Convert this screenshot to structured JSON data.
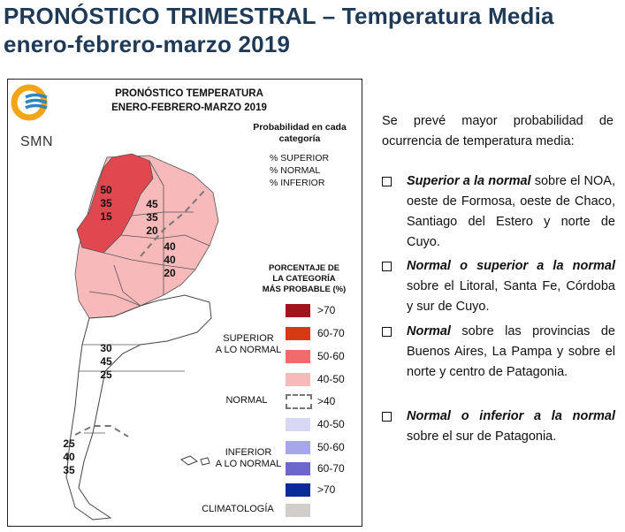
{
  "title_line1": "PRONÓSTICO TRIMESTRAL – Temperatura Media",
  "title_line2": "enero-febrero-marzo 2019",
  "map": {
    "logo_text": "SMN",
    "title_line1": "PRONÓSTICO TEMPERATURA",
    "title_line2": "ENERO-FEBRERO-MARZO 2019",
    "prob_header_line1": "Probabilidad en cada",
    "prob_header_line2": "categoría",
    "prob_items": [
      "% SUPERIOR",
      "% NORMAL",
      "% INFERIOR"
    ],
    "pct_header": [
      "PORCENTAJE DE",
      "LA CATEGORÍA",
      "MÁS PROBABLE (%)"
    ],
    "category_labels": {
      "superior": [
        "SUPERIOR",
        "A LO NORMAL"
      ],
      "normal": "NORMAL",
      "inferior": [
        "INFERIOR",
        "A LO NORMAL"
      ],
      "climatologia": "CLIMATOLOGÍA"
    },
    "legend": [
      {
        "label": ">70",
        "color": "#a0151c"
      },
      {
        "label": "60-70",
        "color": "#d63a12"
      },
      {
        "label": "50-60",
        "color": "#f26a6a"
      },
      {
        "label": "40-50",
        "color": "#f7b9b9"
      },
      {
        "label": ">40",
        "color": "dashed"
      },
      {
        "label": "40-50",
        "color": "#d8d8f5"
      },
      {
        "label": "50-60",
        "color": "#a6a6ef"
      },
      {
        "label": "60-70",
        "color": "#6e66cc"
      },
      {
        "label": ">70",
        "color": "#0a2a9a"
      },
      {
        "label": "",
        "color": "#d0cdcb"
      }
    ],
    "region_values": [
      {
        "sup": "50",
        "nor": "35",
        "inf": "15"
      },
      {
        "sup": "45",
        "nor": "35",
        "inf": "20"
      },
      {
        "sup": "40",
        "nor": "40",
        "inf": "20"
      },
      {
        "sup": "30",
        "nor": "45",
        "inf": "25"
      },
      {
        "sup": "25",
        "nor": "40",
        "inf": "35"
      }
    ]
  },
  "intro": "Se prevé mayor probabilidad de ocurrencia de temperatura media:",
  "bullets": [
    {
      "emph": "Superior a la normal",
      "rest": " sobre el NOA, oeste de Formosa, oeste de Chaco, Santiago del Estero y norte de Cuyo."
    },
    {
      "emph": "Normal o superior a la normal",
      "rest": " sobre el Litoral, Santa Fe, Córdoba y sur de Cuyo."
    },
    {
      "emph": "Normal",
      "rest": " sobre las provincias de Buenos Aires, La Pampa y sobre el norte y centro de Patagonia."
    },
    {
      "emph": "Normal o inferior a la normal",
      "rest": " sobre el sur de Patagonia."
    }
  ],
  "colors": {
    "title": "#1f3a57",
    "logo_orange": "#f2a516",
    "logo_blue": "#2e86c1",
    "dark_red": "#e0404a",
    "light_red": "#f7b9b9",
    "map_fill": "#ffffff"
  }
}
